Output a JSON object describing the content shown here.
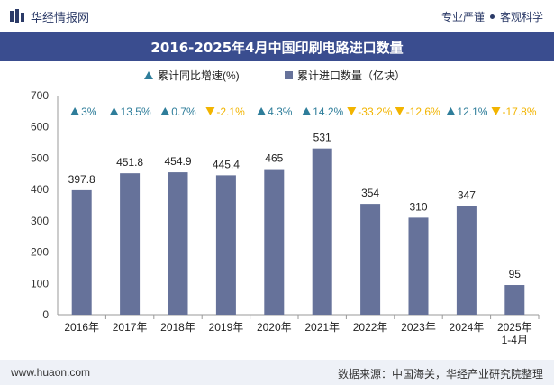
{
  "header": {
    "brand": "华经情报网",
    "slogan_left": "专业严谨",
    "slogan_right": "客观科学"
  },
  "footer": {
    "url": "www.huaon.com",
    "source": "数据来源：中国海关，华经产业研究院整理"
  },
  "colors": {
    "bar": "#66729a",
    "up": "#2e7d9a",
    "down": "#f2b400",
    "title_bg": "#3a4d8f"
  },
  "chart_data": {
    "type": "bar",
    "title": "2016-2025年4月中国印刷电路进口数量",
    "categories": [
      "2016年",
      "2017年",
      "2018年",
      "2019年",
      "2020年",
      "2021年",
      "2022年",
      "2023年",
      "2024年",
      "2025年\n1-4月"
    ],
    "series": [
      {
        "name": "累计进口数量（亿块）",
        "values": [
          397.8,
          451.8,
          454.9,
          445.4,
          465,
          531,
          354,
          310,
          347,
          95
        ],
        "labels": [
          "397.8",
          "451.8",
          "454.9",
          "445.4",
          "465",
          "531",
          "354",
          "310",
          "347",
          "95"
        ]
      },
      {
        "name": "累计同比增速(%)",
        "values": [
          3,
          13.5,
          0.7,
          -2.1,
          4.3,
          14.2,
          -33.2,
          -12.6,
          12.1,
          -17.8
        ],
        "labels": [
          "3%",
          "13.5%",
          "0.7%",
          "-2.1%",
          "4.3%",
          "14.2%",
          "-33.2%",
          "-12.6%",
          "12.1%",
          "-17.8%"
        ]
      }
    ],
    "yticks": [
      "0",
      "100",
      "200",
      "300",
      "400",
      "500",
      "600",
      "700"
    ],
    "ylim": [
      0,
      700
    ],
    "legend_position": "top-center",
    "grid": false
  }
}
